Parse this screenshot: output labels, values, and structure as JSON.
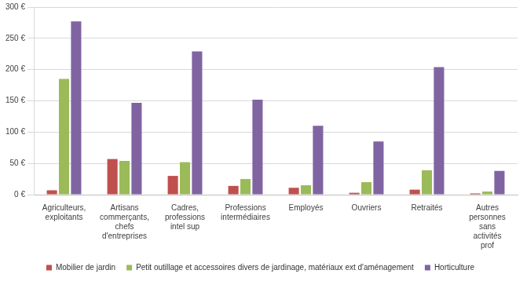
{
  "chart_data": {
    "type": "bar",
    "categories": [
      "Agriculteurs, exploitants",
      "Artisans commerçants, chefs d'entreprises",
      "Cadres, professions intel sup",
      "Professions intermédiaires",
      "Employés",
      "Ouvriers",
      "Retraités",
      "Autres personnes sans activités prof"
    ],
    "series": [
      {
        "name": "Mobilier de jardin",
        "color": "#c0504d",
        "values": [
          7,
          57,
          30,
          14,
          11,
          3,
          8,
          2
        ]
      },
      {
        "name": "Petit outillage et accessoires divers de jardinage, matériaux ext d'aménagement",
        "color": "#9bbb59",
        "values": [
          185,
          54,
          52,
          25,
          15,
          20,
          39,
          5
        ]
      },
      {
        "name": "Horticulture",
        "color": "#8064a2",
        "values": [
          277,
          147,
          229,
          152,
          110,
          85,
          204,
          38
        ]
      }
    ],
    "ylim": [
      0,
      300
    ],
    "yticks": [
      {
        "value": 0,
        "label": "0 €"
      },
      {
        "value": 50,
        "label": "50 €"
      },
      {
        "value": 100,
        "label": "100 €"
      },
      {
        "value": 150,
        "label": "150 €"
      },
      {
        "value": 200,
        "label": "200 €"
      },
      {
        "value": 250,
        "label": "250 €"
      },
      {
        "value": 300,
        "label": "300 €"
      }
    ],
    "grid": true,
    "legend": "bottom"
  }
}
